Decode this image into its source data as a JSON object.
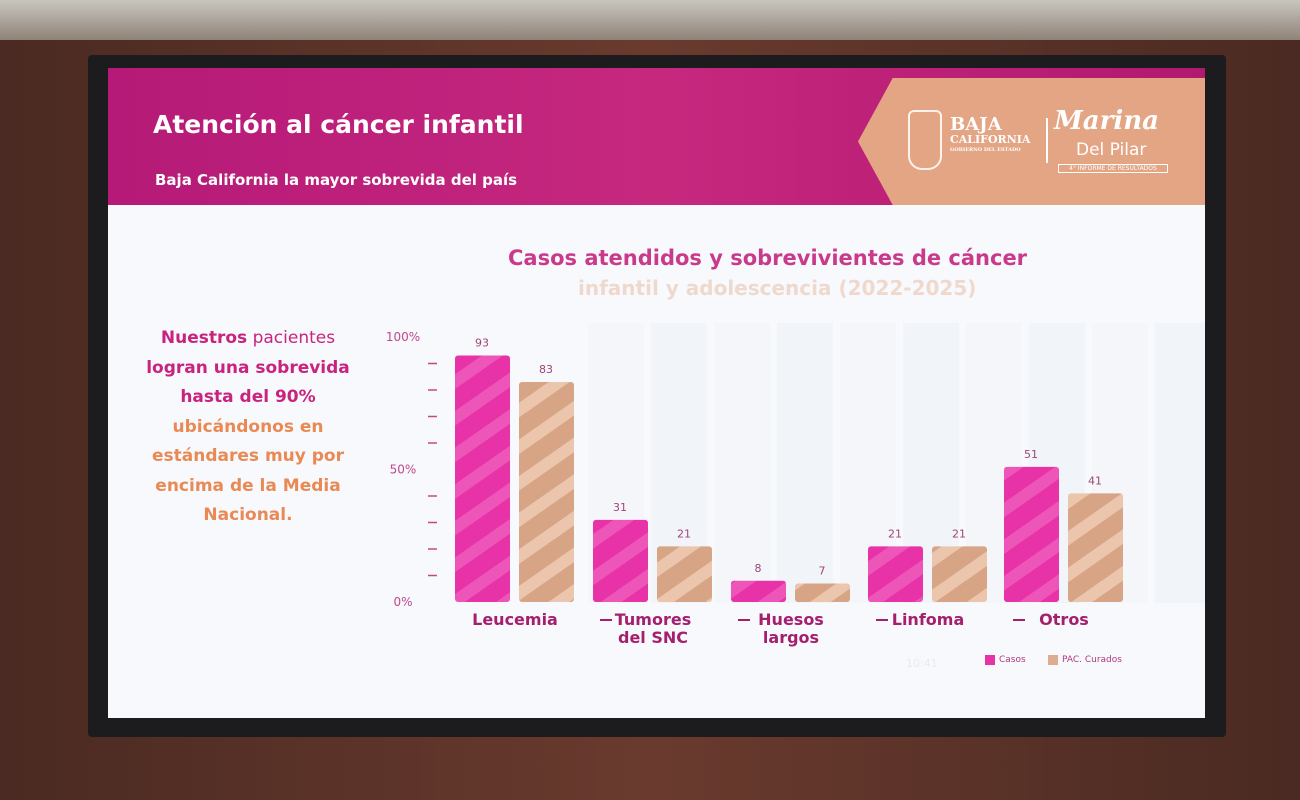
{
  "header": {
    "title": "Atención al cáncer infantil",
    "subtitle": "Baja California la mayor sobrevida del país"
  },
  "logos": {
    "state_line1": "BAJA",
    "state_line2": "CALIFORNIA",
    "state_line3": "GOBIERNO DEL ESTADO",
    "name1": "Marina",
    "name2": "Del Pilar",
    "informe": "4° INFORME DE RESULTADOS"
  },
  "left_text": {
    "l1a": "Nuestros",
    "l1b": " pacientes",
    "l2": "logran una sobrevida",
    "l3": "hasta del 90%",
    "l4": "ubicándonos en",
    "l5": "estándares muy por",
    "l6": "encima de la Media",
    "l7": "Nacional."
  },
  "timestamp": "10:41",
  "colors": {
    "casos": "#e832a8",
    "curados": "#dcae8f",
    "header": "#b51a78"
  },
  "chart_data": {
    "type": "bar",
    "title": "Casos atendidos y sobrevivientes de cáncer",
    "subtitle": "infantil y adolescencia (2022-2025)",
    "categories": [
      "Leucemia",
      "Tumores del SNC",
      "Huesos largos",
      "Linfoma",
      "Otros"
    ],
    "series": [
      {
        "name": "Casos",
        "values": [
          93,
          31,
          8,
          21,
          51
        ]
      },
      {
        "name": "PAC. Curados",
        "values": [
          83,
          21,
          7,
          21,
          41
        ]
      }
    ],
    "yticks": [
      "100%",
      "50%",
      "0%"
    ],
    "ylim": [
      0,
      100
    ],
    "legend": "bottom-right"
  }
}
